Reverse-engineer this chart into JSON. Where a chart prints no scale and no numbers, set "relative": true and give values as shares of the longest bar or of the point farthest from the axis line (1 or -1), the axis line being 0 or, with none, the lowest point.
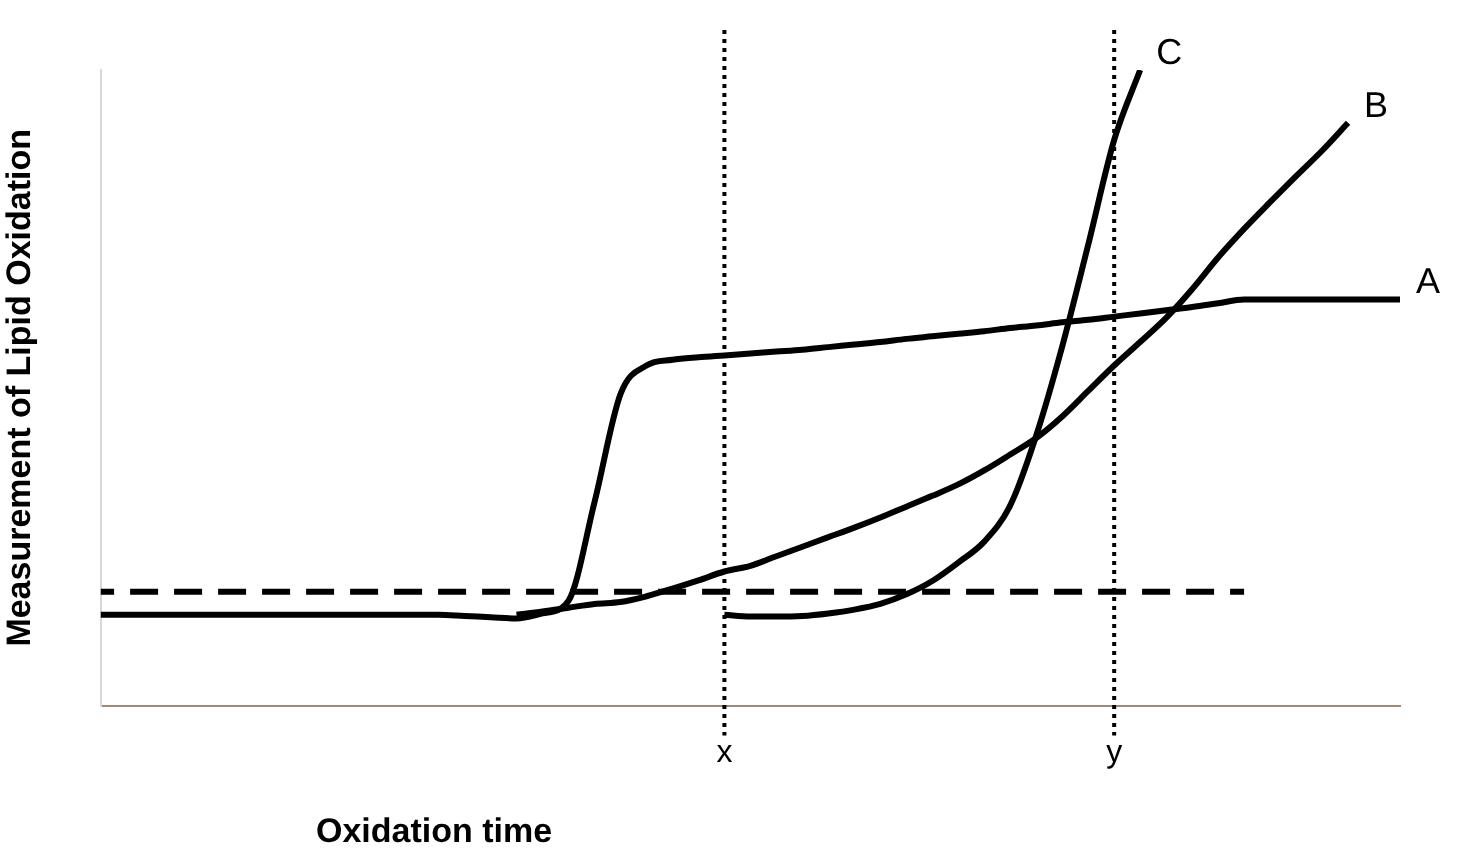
{
  "chart_data": {
    "type": "line",
    "relative": true,
    "xlabel": "Oxidation time",
    "ylabel": "Measurement of Lipid Oxidation",
    "categories": [
      null,
      null,
      null,
      null,
      null,
      null,
      null,
      null,
      null,
      null,
      null,
      null,
      null,
      null,
      null,
      null,
      null,
      null,
      null,
      null,
      null,
      null,
      null,
      null,
      "x",
      null,
      null,
      null,
      null,
      null,
      null,
      null,
      null,
      null,
      null,
      null,
      null,
      null,
      null,
      "y",
      null,
      null,
      null,
      null,
      null,
      null,
      null,
      null,
      null,
      null,
      null
    ],
    "grid": false,
    "legend": false,
    "marker": "none",
    "line_style": "solid",
    "ref_lines": [
      {
        "axis": "x",
        "value": "x",
        "line_style": "dotted",
        "color": "#000000"
      },
      {
        "axis": "x",
        "value": "y",
        "line_style": "dotted",
        "color": "#000000"
      }
    ],
    "series": [
      {
        "name": "A",
        "color": "#000000",
        "values": [
          0.143,
          0.143,
          0.143,
          0.143,
          0.143,
          0.143,
          0.143,
          0.143,
          0.143,
          0.143,
          0.143,
          0.143,
          0.143,
          0.143,
          0.141,
          0.139,
          0.137,
          0.145,
          0.165,
          0.32,
          0.49,
          0.535,
          0.544,
          0.548,
          0.551,
          0.554,
          0.557,
          0.56,
          0.564,
          0.568,
          0.572,
          0.577,
          0.581,
          0.585,
          0.589,
          0.594,
          0.598,
          0.603,
          0.607,
          0.612,
          0.617,
          0.622,
          0.627,
          0.633,
          0.639,
          0.639,
          0.639,
          0.639,
          0.639,
          0.639,
          0.639
        ]
      },
      {
        "name": "B",
        "color": "#000000",
        "values": [
          null,
          null,
          null,
          null,
          null,
          null,
          null,
          null,
          null,
          null,
          null,
          null,
          null,
          null,
          null,
          null,
          0.143,
          0.148,
          0.154,
          0.16,
          0.163,
          0.172,
          0.184,
          0.197,
          0.211,
          0.22,
          0.235,
          0.25,
          0.265,
          0.28,
          0.296,
          0.313,
          0.33,
          0.348,
          0.37,
          0.395,
          0.421,
          0.455,
          0.495,
          0.535,
          0.572,
          0.61,
          0.655,
          0.705,
          0.75,
          0.792,
          0.833,
          0.873,
          0.917,
          null,
          null
        ]
      },
      {
        "name": "C",
        "color": "#000000",
        "values": [
          null,
          null,
          null,
          null,
          null,
          null,
          null,
          null,
          null,
          null,
          null,
          null,
          null,
          null,
          null,
          null,
          null,
          null,
          null,
          null,
          null,
          null,
          null,
          null,
          0.143,
          0.14,
          0.14,
          0.141,
          0.145,
          0.151,
          0.16,
          0.175,
          0.196,
          0.225,
          0.258,
          0.315,
          0.425,
          0.565,
          0.725,
          0.89,
          1.0,
          null,
          null,
          null,
          null,
          null,
          null,
          null,
          null,
          null,
          null
        ]
      },
      {
        "color": "#000000",
        "line_style": "dashed",
        "values": [
          0.179,
          0.179,
          0.179,
          0.179,
          0.179,
          0.179,
          0.179,
          0.179,
          0.179,
          0.179,
          0.179,
          0.179,
          0.179,
          0.179,
          0.179,
          0.179,
          0.179,
          0.179,
          0.179,
          0.179,
          0.179,
          0.179,
          0.179,
          0.179,
          0.179,
          0.179,
          0.179,
          0.179,
          0.179,
          0.179,
          0.179,
          0.179,
          0.179,
          0.179,
          0.179,
          0.179,
          0.179,
          0.179,
          0.179,
          0.179,
          0.179,
          0.179,
          0.179,
          0.179,
          0.179,
          null,
          null,
          null,
          null,
          null,
          null
        ]
      }
    ]
  }
}
